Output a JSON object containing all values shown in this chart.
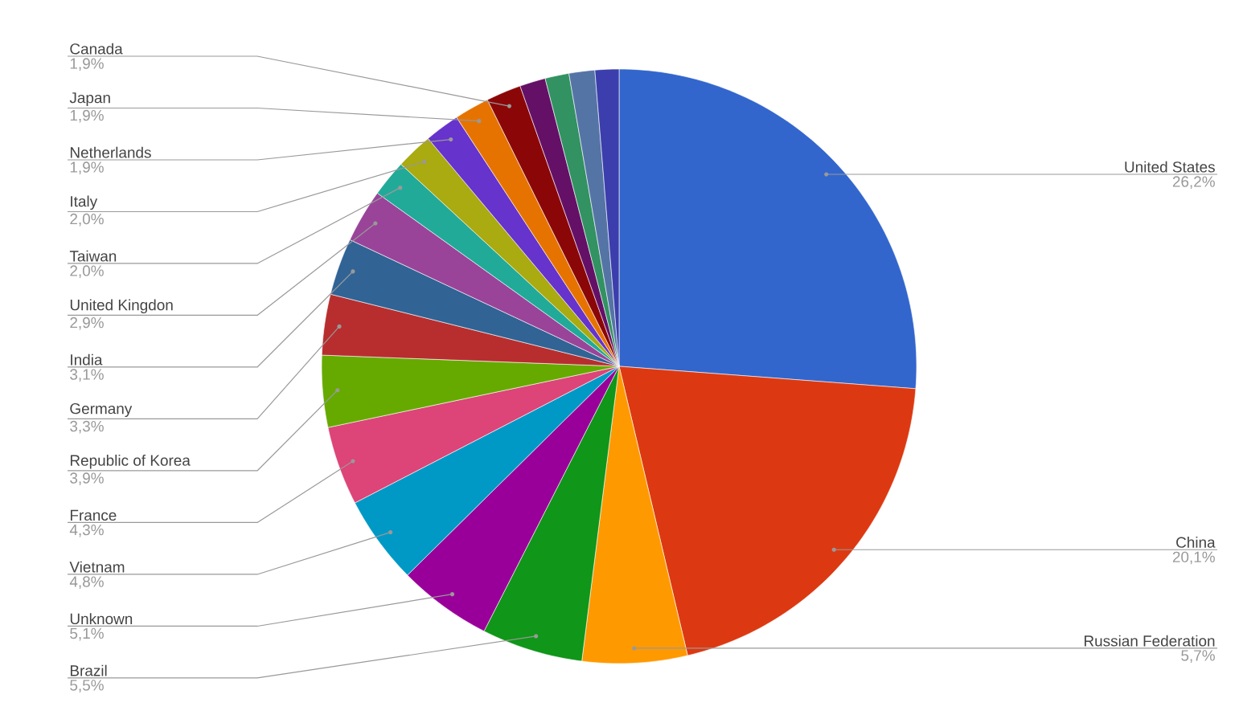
{
  "chart_data": {
    "type": "pie",
    "categories": [
      "United States",
      "China",
      "Russian Federation",
      "Brazil",
      "Unknown",
      "Vietnam",
      "France",
      "Republic of Korea",
      "Germany",
      "India",
      "United Kingdon",
      "Taiwan",
      "Italy",
      "Netherlands",
      "Japan",
      "Canada",
      null,
      null,
      null,
      null
    ],
    "values": [
      26.2,
      20.1,
      5.7,
      5.5,
      5.1,
      4.8,
      4.3,
      3.9,
      3.3,
      3.1,
      2.9,
      2.0,
      2.0,
      1.9,
      1.9,
      1.9,
      1.4,
      1.3,
      1.4,
      1.3
    ],
    "value_labels": [
      "26,2%",
      "20,1%",
      "5,7%",
      "5,5%",
      "5,1%",
      "4,8%",
      "4,3%",
      "3,9%",
      "3,3%",
      "3,1%",
      "2,9%",
      "2,0%",
      "2,0%",
      "1,9%",
      "1,9%",
      "1,9%",
      null,
      null,
      null,
      null
    ],
    "colors": [
      "#3366cc",
      "#dc3912",
      "#ff9900",
      "#109618",
      "#990099",
      "#0099c6",
      "#dd4477",
      "#66aa00",
      "#b82e2e",
      "#316395",
      "#994499",
      "#22aa99",
      "#aaaa11",
      "#6633cc",
      "#e67300",
      "#8b0707",
      "#651067",
      "#329262",
      "#5574a6",
      "#3b3eac"
    ]
  }
}
